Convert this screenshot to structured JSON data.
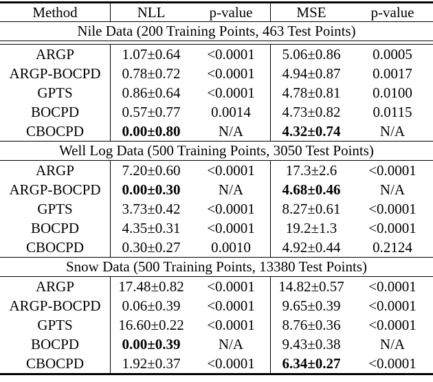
{
  "table": {
    "columns": [
      "Method",
      "NLL",
      "p-value",
      "MSE",
      "p-value"
    ],
    "sections": [
      {
        "title": "Nile Data (200 Training Points, 463 Test Points)",
        "rows": [
          {
            "method": "ARGP",
            "nll": "1.07±0.64",
            "nll_p": "<0.0001",
            "mse": "5.06±0.86",
            "mse_p": "0.0005",
            "nll_bold": false,
            "mse_bold": false
          },
          {
            "method": "ARGP-BOCPD",
            "nll": "0.78±0.72",
            "nll_p": "<0.0001",
            "mse": "4.94±0.87",
            "mse_p": "0.0017",
            "nll_bold": false,
            "mse_bold": false
          },
          {
            "method": "GPTS",
            "nll": "0.86±0.64",
            "nll_p": "<0.0001",
            "mse": "4.78±0.81",
            "mse_p": "0.0100",
            "nll_bold": false,
            "mse_bold": false
          },
          {
            "method": "BOCPD",
            "nll": "0.57±0.77",
            "nll_p": "0.0014",
            "mse": "4.73±0.82",
            "mse_p": "0.0115",
            "nll_bold": false,
            "mse_bold": false
          },
          {
            "method": "CBOCPD",
            "nll": "0.00±0.80",
            "nll_p": "N/A",
            "mse": "4.32±0.74",
            "mse_p": "N/A",
            "nll_bold": true,
            "mse_bold": true
          }
        ]
      },
      {
        "title": "Well Log Data (500 Training Points, 3050 Test Points)",
        "rows": [
          {
            "method": "ARGP",
            "nll": "7.20±0.60",
            "nll_p": "<0.0001",
            "mse": "17.3±2.6",
            "mse_p": "<0.0001",
            "nll_bold": false,
            "mse_bold": false
          },
          {
            "method": "ARGP-BOCPD",
            "nll": "0.00±0.30",
            "nll_p": "N/A",
            "mse": "4.68±0.46",
            "mse_p": "N/A",
            "nll_bold": true,
            "mse_bold": true
          },
          {
            "method": "GPTS",
            "nll": "3.73±0.42",
            "nll_p": "<0.0001",
            "mse": "8.27±0.61",
            "mse_p": "<0.0001",
            "nll_bold": false,
            "mse_bold": false
          },
          {
            "method": "BOCPD",
            "nll": "4.35±0.31",
            "nll_p": "<0.0001",
            "mse": "19.2±1.3",
            "mse_p": "<0.0001",
            "nll_bold": false,
            "mse_bold": false
          },
          {
            "method": "CBOCPD",
            "nll": "0.30±0.27",
            "nll_p": "0.0010",
            "mse": "4.92±0.44",
            "mse_p": "0.2124",
            "nll_bold": false,
            "mse_bold": false
          }
        ]
      },
      {
        "title": "Snow Data (500 Training Points, 13380 Test Points)",
        "rows": [
          {
            "method": "ARGP",
            "nll": "17.48±0.82",
            "nll_p": "<0.0001",
            "mse": "14.82±0.57",
            "mse_p": "<0.0001",
            "nll_bold": false,
            "mse_bold": false
          },
          {
            "method": "ARGP-BOCPD",
            "nll": "0.06±0.39",
            "nll_p": "<0.0001",
            "mse": "9.65±0.39",
            "mse_p": "<0.0001",
            "nll_bold": false,
            "mse_bold": false
          },
          {
            "method": "GPTS",
            "nll": "16.60±0.22",
            "nll_p": "<0.0001",
            "mse": "8.76±0.36",
            "mse_p": "<0.0001",
            "nll_bold": false,
            "mse_bold": false
          },
          {
            "method": "BOCPD",
            "nll": "0.00±0.39",
            "nll_p": "N/A",
            "mse": "9.43±0.38",
            "mse_p": "N/A",
            "nll_bold": true,
            "mse_bold": false
          },
          {
            "method": "CBOCPD",
            "nll": "1.92±0.37",
            "nll_p": "<0.0001",
            "mse": "6.34±0.27",
            "mse_p": "<0.0001",
            "nll_bold": false,
            "mse_bold": true
          }
        ]
      }
    ]
  }
}
